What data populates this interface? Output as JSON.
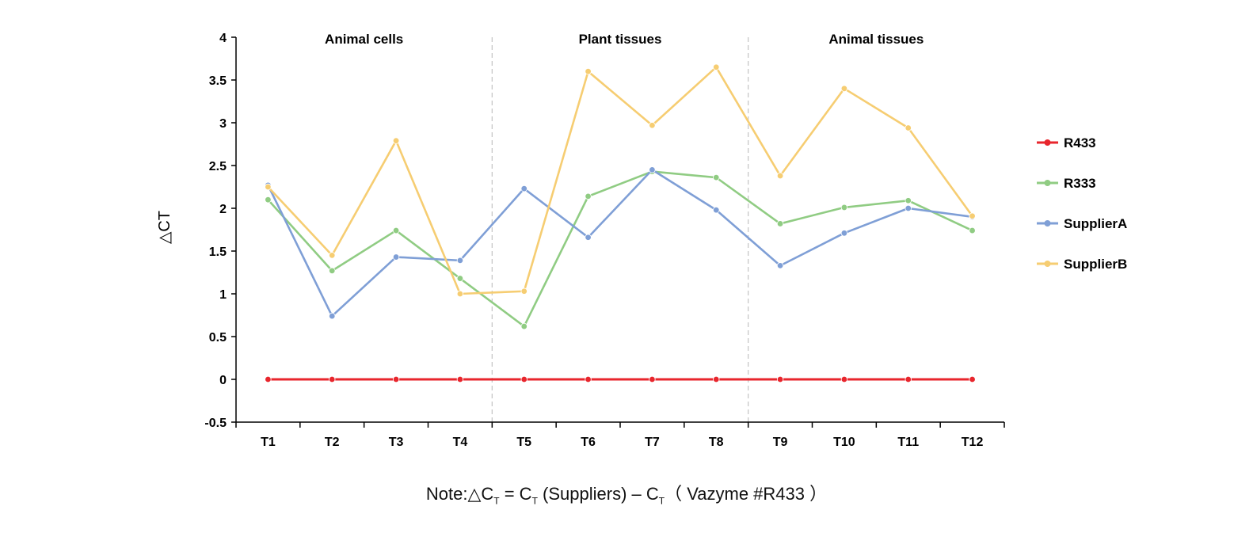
{
  "chart_data": {
    "type": "line",
    "categories": [
      "T1",
      "T2",
      "T3",
      "T4",
      "T5",
      "T6",
      "T7",
      "T8",
      "T9",
      "T10",
      "T11",
      "T12"
    ],
    "ylim": [
      -0.5,
      4
    ],
    "yticks": [
      "4",
      "3.5",
      "3",
      "2.5",
      "2",
      "1.5",
      "1",
      "0.5",
      "0",
      "-0.5"
    ],
    "ytick_values": [
      4,
      3.5,
      3,
      2.5,
      2,
      1.5,
      1,
      0.5,
      0,
      -0.5
    ],
    "ylabel": "△CT",
    "groups": [
      {
        "label": "Animal cells",
        "span": [
          0,
          3
        ]
      },
      {
        "label": "Plant tissues",
        "span": [
          4,
          7
        ]
      },
      {
        "label": "Animal tissues",
        "span": [
          8,
          11
        ]
      }
    ],
    "legend_position": "right",
    "series": [
      {
        "name": "R433",
        "color": "#e8262d",
        "values": [
          0,
          0,
          0,
          0,
          0,
          0,
          0,
          0,
          0,
          0,
          0,
          0
        ]
      },
      {
        "name": "R333",
        "color": "#90cc83",
        "values": [
          2.1,
          1.27,
          1.74,
          1.18,
          0.62,
          2.14,
          2.43,
          2.36,
          1.82,
          2.01,
          2.09,
          1.74
        ]
      },
      {
        "name": "SupplierA",
        "color": "#7f9fd6",
        "values": [
          2.27,
          0.74,
          1.43,
          1.39,
          2.23,
          1.66,
          2.45,
          1.98,
          1.33,
          1.71,
          2.0,
          1.9
        ]
      },
      {
        "name": "SupplierB",
        "color": "#f6cd72",
        "values": [
          2.25,
          1.45,
          2.79,
          1.0,
          1.03,
          3.6,
          2.97,
          3.65,
          2.38,
          3.4,
          2.94,
          1.91
        ]
      }
    ]
  },
  "note": {
    "prefix": "Note:",
    "delta": "△C",
    "sub1": "T",
    "mid": " = C",
    "sub2": "T",
    "suppliers": " (Suppliers) – C",
    "sub3": "T",
    "suffix": "（ Vazyme #R433 ）"
  }
}
